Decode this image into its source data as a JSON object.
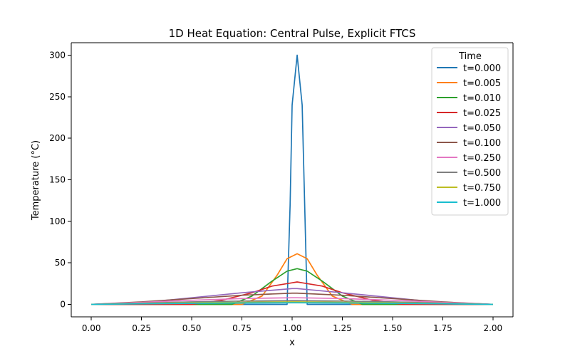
{
  "chart_data": {
    "type": "line",
    "title": "1D Heat Equation: Central Pulse, Explicit FTCS",
    "xlabel": "x",
    "ylabel": "Temperature (°C)",
    "xlim": [
      -0.1,
      2.1
    ],
    "ylim": [
      -15,
      315
    ],
    "x_ticks": [
      0.0,
      0.25,
      0.5,
      0.75,
      1.0,
      1.25,
      1.5,
      1.75,
      2.0
    ],
    "x_tick_labels": [
      "0.00",
      "0.25",
      "0.50",
      "0.75",
      "1.00",
      "1.25",
      "1.50",
      "1.75",
      "2.00"
    ],
    "y_ticks": [
      0,
      50,
      100,
      150,
      200,
      250,
      300
    ],
    "y_tick_labels": [
      "0",
      "50",
      "100",
      "150",
      "200",
      "250",
      "300"
    ],
    "grid": false,
    "legend": {
      "title": "Time",
      "placement": "top-right"
    },
    "series": [
      {
        "name": "t=0.000",
        "color": "#1f77b4",
        "x": [
          0.0,
          0.975,
          0.99,
          1.0,
          1.025,
          1.05,
          1.075,
          2.0
        ],
        "y": [
          0,
          0,
          120,
          240,
          300,
          240,
          0,
          0
        ]
      },
      {
        "name": "t=0.005",
        "color": "#ff7f0e",
        "x": [
          0.0,
          0.75,
          0.85,
          0.925,
          0.975,
          1.025,
          1.075,
          1.125,
          1.2,
          1.3,
          2.0
        ],
        "y": [
          0,
          0,
          10,
          35,
          55,
          61,
          55,
          35,
          10,
          0,
          0
        ]
      },
      {
        "name": "t=0.010",
        "color": "#2ca02c",
        "x": [
          0.0,
          0.7,
          0.8,
          0.9,
          0.975,
          1.025,
          1.075,
          1.15,
          1.25,
          1.35,
          2.0
        ],
        "y": [
          0,
          0,
          10,
          28,
          40,
          43,
          40,
          28,
          10,
          0,
          0
        ]
      },
      {
        "name": "t=0.025",
        "color": "#d62728",
        "x": [
          0.0,
          0.5,
          0.65,
          0.8,
          0.9,
          1.0,
          1.025,
          1.05,
          1.15,
          1.25,
          1.4,
          1.55,
          2.0
        ],
        "y": [
          0,
          0,
          5,
          14,
          22,
          26,
          27,
          26,
          22,
          14,
          5,
          0,
          0
        ]
      },
      {
        "name": "t=0.050",
        "color": "#9467bd",
        "x": [
          0.0,
          0.25,
          0.5,
          0.75,
          1.0,
          1.025,
          1.25,
          1.5,
          1.75,
          2.0
        ],
        "y": [
          0,
          2,
          8,
          14,
          19,
          19,
          14,
          8,
          2,
          0
        ]
      },
      {
        "name": "t=0.100",
        "color": "#8c564b",
        "x": [
          0.0,
          0.25,
          0.5,
          0.75,
          1.0,
          1.025,
          1.25,
          1.5,
          1.75,
          2.0
        ],
        "y": [
          0,
          3,
          7,
          11,
          13.5,
          13.5,
          11,
          7,
          3,
          0
        ]
      },
      {
        "name": "t=0.250",
        "color": "#e377c2",
        "x": [
          0.0,
          0.25,
          0.5,
          0.75,
          1.0,
          1.025,
          1.25,
          1.5,
          1.75,
          2.0
        ],
        "y": [
          0,
          2.5,
          5,
          7,
          8,
          8,
          7,
          5,
          2.5,
          0
        ]
      },
      {
        "name": "t=0.500",
        "color": "#7f7f7f",
        "x": [
          0.0,
          0.25,
          0.5,
          0.75,
          1.0,
          1.025,
          1.25,
          1.5,
          1.75,
          2.0
        ],
        "y": [
          0,
          1.5,
          3,
          4,
          4.5,
          4.5,
          4,
          3,
          1.5,
          0
        ]
      },
      {
        "name": "t=0.750",
        "color": "#bcbd22",
        "x": [
          0.0,
          0.25,
          0.5,
          0.75,
          1.0,
          1.025,
          1.25,
          1.5,
          1.75,
          2.0
        ],
        "y": [
          0,
          1,
          2,
          2.5,
          3,
          3,
          2.5,
          2,
          1,
          0
        ]
      },
      {
        "name": "t=1.000",
        "color": "#17becf",
        "x": [
          0.0,
          0.25,
          0.5,
          0.75,
          1.0,
          1.025,
          1.25,
          1.5,
          1.75,
          2.0
        ],
        "y": [
          0,
          0.7,
          1.3,
          1.7,
          1.9,
          1.9,
          1.7,
          1.3,
          0.7,
          0
        ]
      }
    ]
  }
}
